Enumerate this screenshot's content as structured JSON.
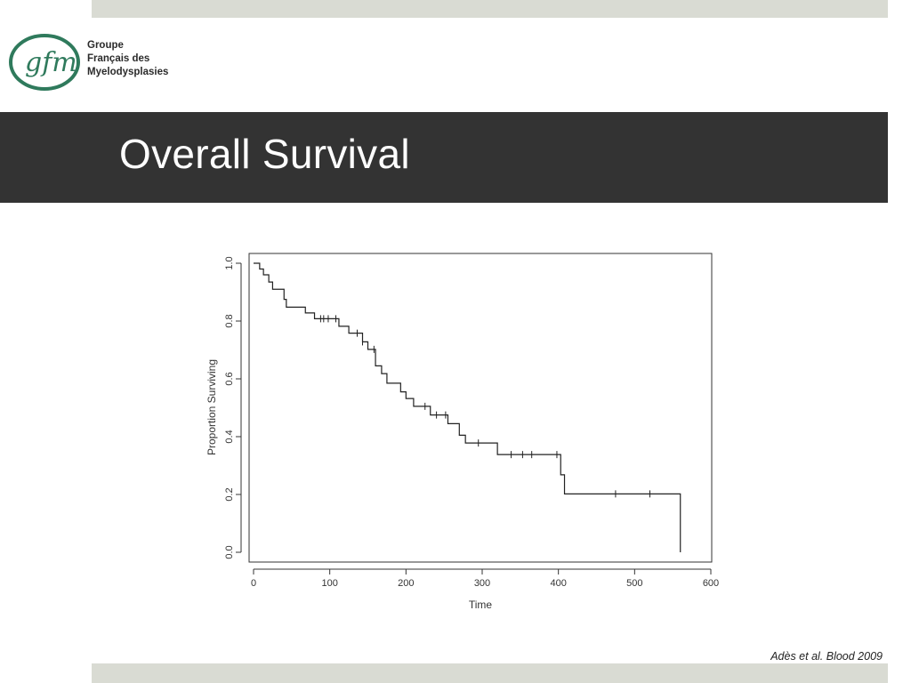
{
  "logo": {
    "mark_text": "gfm",
    "lines": [
      "Groupe",
      "Français des",
      "Myelodysplasies"
    ]
  },
  "slide": {
    "title": "Overall Survival",
    "citation": "Adès et al. Blood 2009"
  },
  "colors": {
    "band": "#d9dbd3",
    "title_band": "#333333",
    "logo_green": "#2f7a5c"
  },
  "chart_data": {
    "type": "line",
    "subtype": "kaplan-meier step curve",
    "xlabel": "Time",
    "ylabel": "Proportion Surviving",
    "xlim": [
      0,
      600
    ],
    "ylim": [
      0,
      1.0
    ],
    "xticks": [
      "0",
      "100",
      "200",
      "300",
      "400",
      "500",
      "600"
    ],
    "yticks": [
      "0.0",
      "0.2",
      "0.4",
      "0.6",
      "0.8",
      "1.0"
    ],
    "grid": false,
    "legend": "none",
    "steps": [
      [
        0,
        1.0
      ],
      [
        8,
        0.98
      ],
      [
        13,
        0.96
      ],
      [
        20,
        0.935
      ],
      [
        25,
        0.91
      ],
      [
        40,
        0.875
      ],
      [
        43,
        0.848
      ],
      [
        68,
        0.828
      ],
      [
        80,
        0.808
      ],
      [
        112,
        0.782
      ],
      [
        125,
        0.758
      ],
      [
        143,
        0.728
      ],
      [
        150,
        0.702
      ],
      [
        160,
        0.645
      ],
      [
        168,
        0.618
      ],
      [
        175,
        0.585
      ],
      [
        193,
        0.555
      ],
      [
        200,
        0.532
      ],
      [
        210,
        0.505
      ],
      [
        232,
        0.475
      ],
      [
        255,
        0.445
      ],
      [
        270,
        0.405
      ],
      [
        278,
        0.378
      ],
      [
        320,
        0.338
      ],
      [
        403,
        0.268
      ],
      [
        408,
        0.202
      ],
      [
        560,
        0.0
      ]
    ],
    "end_x": 560,
    "censored": [
      [
        88,
        0.808
      ],
      [
        92,
        0.808
      ],
      [
        98,
        0.808
      ],
      [
        108,
        0.808
      ],
      [
        136,
        0.758
      ],
      [
        143,
        0.728
      ],
      [
        158,
        0.702
      ],
      [
        225,
        0.505
      ],
      [
        240,
        0.475
      ],
      [
        252,
        0.475
      ],
      [
        295,
        0.378
      ],
      [
        338,
        0.338
      ],
      [
        353,
        0.338
      ],
      [
        365,
        0.338
      ],
      [
        398,
        0.338
      ],
      [
        475,
        0.202
      ],
      [
        520,
        0.202
      ]
    ]
  }
}
